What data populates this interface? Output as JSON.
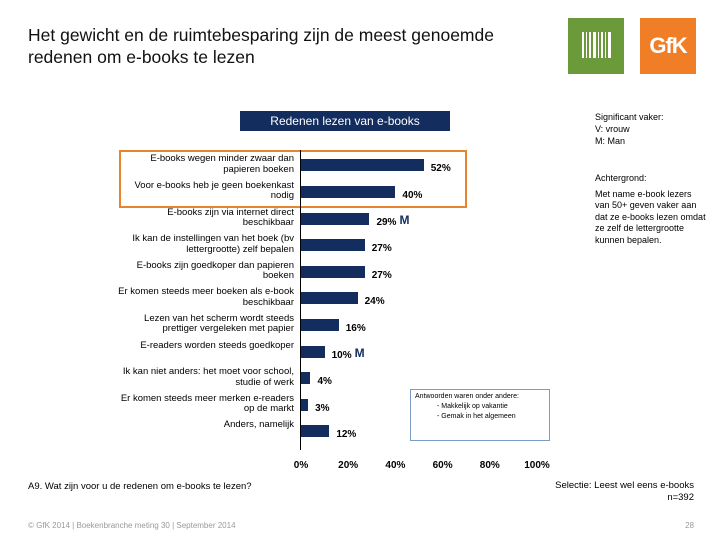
{
  "title": "Het gewicht en de ruimtebesparing zijn de meest genoemde redenen om e-books te lezen",
  "logos": {
    "gfk": "GfK"
  },
  "significance": {
    "heading": "Significant vaker:",
    "items": [
      "V: vrouw",
      "M: Man"
    ]
  },
  "background": {
    "heading": "Achtergrond:",
    "text": "Met name e-book lezers van 50+ geven vaker aan dat ze e-books lezen omdat ze zelf de lettergrootte kunnen bepalen."
  },
  "chart_data": {
    "type": "bar",
    "orientation": "horizontal",
    "title": "Redenen lezen van e-books",
    "categories": [
      "E-books wegen minder zwaar dan papieren boeken",
      "Voor e-books heb je geen boekenkast nodig",
      "E-books zijn via internet direct beschikbaar",
      "Ik kan de instellingen van het boek (bv lettergrootte) zelf bepalen",
      "E-books zijn goedkoper dan papieren boeken",
      "Er komen steeds meer boeken als e-book beschikbaar",
      "Lezen van het scherm wordt steeds prettiger vergeleken met papier",
      "E-readers worden steeds goedkoper",
      "Ik kan niet anders: het moet voor school, studie of werk",
      "Er komen steeds meer merken e-readers op de markt",
      "Anders, namelijk"
    ],
    "values": [
      52,
      40,
      29,
      27,
      27,
      24,
      16,
      10,
      4,
      3,
      12
    ],
    "value_labels": [
      "52%",
      "40%",
      "29%",
      "27%",
      "27%",
      "24%",
      "16%",
      "10%",
      "4%",
      "3%",
      "12%"
    ],
    "significance_marks": [
      "",
      "",
      "M",
      "",
      "",
      "",
      "",
      "M",
      "",
      "",
      ""
    ],
    "highlighted_categories": [
      0,
      1
    ],
    "xlim": [
      0,
      100
    ],
    "xticks": [
      "0%",
      "20%",
      "40%",
      "60%",
      "80%",
      "100%"
    ],
    "xtick_values": [
      0,
      20,
      40,
      60,
      80,
      100
    ],
    "grid": false,
    "color": "#132d5e",
    "highlight_color": "#e8842e"
  },
  "other_answers": {
    "heading": "Antwoorden waren onder andere:",
    "items": [
      "Makkelijk op vakantie",
      "Gemak in het algemeen"
    ]
  },
  "question": "A9. Wat zijn voor u de redenen om e-books te lezen?",
  "selection": {
    "line1": "Selectie: Leest wel eens e-books",
    "line2": "n=392"
  },
  "footer": "© GfK 2014 | Boekenbranche meting 30 | September 2014",
  "page_number": "28"
}
